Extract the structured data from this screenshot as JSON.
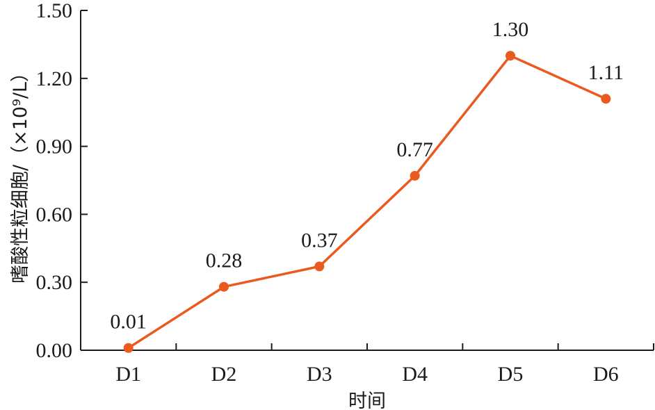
{
  "chart_data": {
    "type": "line",
    "categories": [
      "D1",
      "D2",
      "D3",
      "D4",
      "D5",
      "D6"
    ],
    "series": [
      {
        "values": [
          0.01,
          0.28,
          0.37,
          0.77,
          1.3,
          1.11
        ]
      }
    ],
    "data_labels": [
      "0.01",
      "0.28",
      "0.37",
      "0.77",
      "1.30",
      "1.11"
    ],
    "xlabel": "时间",
    "ylabel": "嗜酸性粒细胞/（×10⁹/L）",
    "ylim": [
      0,
      1.5
    ],
    "yticks": [
      "0.00",
      "0.30",
      "0.60",
      "0.90",
      "1.20",
      "1.50"
    ],
    "grid": false,
    "legend": "none",
    "colors": {
      "series": "#ea5a1e",
      "axis": "#1a1a1a"
    }
  }
}
